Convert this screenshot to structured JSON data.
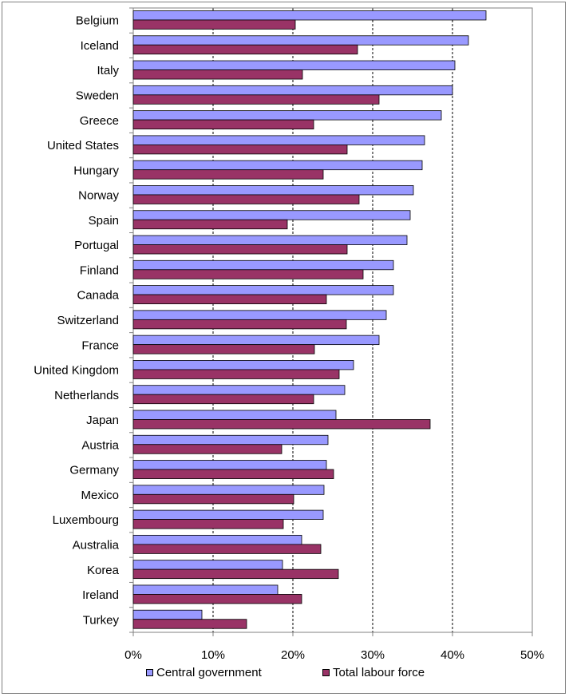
{
  "colors": {
    "central_government": "#9999ff",
    "total_labour_force": "#993366",
    "gridline": "#000000",
    "frame": "#7f7f7f"
  },
  "chart_data": {
    "type": "bar",
    "orientation": "horizontal",
    "title": "",
    "xlabel": "",
    "ylabel": "",
    "xlim": [
      0,
      50
    ],
    "x_unit": "%",
    "ticks": [
      "0%",
      "10%",
      "20%",
      "30%",
      "40%",
      "50%"
    ],
    "tick_values": [
      0,
      10,
      20,
      30,
      40,
      50
    ],
    "grid": "vertical dashed",
    "legend": "bottom",
    "categories": [
      "Belgium",
      "Iceland",
      "Italy",
      "Sweden",
      "Greece",
      "United States",
      "Hungary",
      "Norway",
      "Spain",
      "Portugal",
      "Finland",
      "Canada",
      "Switzerland",
      "France",
      "United Kingdom",
      "Netherlands",
      "Japan",
      "Austria",
      "Germany",
      "Mexico",
      "Luxembourg",
      "Australia",
      "Korea",
      "Ireland",
      "Turkey"
    ],
    "series": [
      {
        "name": "Central government",
        "color": "#9999ff",
        "values": [
          44.2,
          42.0,
          40.3,
          40.0,
          38.6,
          36.5,
          36.2,
          35.1,
          34.7,
          34.3,
          32.6,
          32.6,
          31.7,
          30.8,
          27.6,
          26.5,
          25.4,
          24.4,
          24.2,
          23.9,
          23.8,
          21.1,
          18.7,
          18.1,
          8.6
        ]
      },
      {
        "name": "Total labour force",
        "color": "#993366",
        "values": [
          20.3,
          28.1,
          21.2,
          30.8,
          22.6,
          26.8,
          23.8,
          28.3,
          19.3,
          26.8,
          28.8,
          24.2,
          26.7,
          22.7,
          25.8,
          22.6,
          37.2,
          18.6,
          25.1,
          20.1,
          18.8,
          23.5,
          25.7,
          21.1,
          14.2
        ]
      }
    ]
  }
}
